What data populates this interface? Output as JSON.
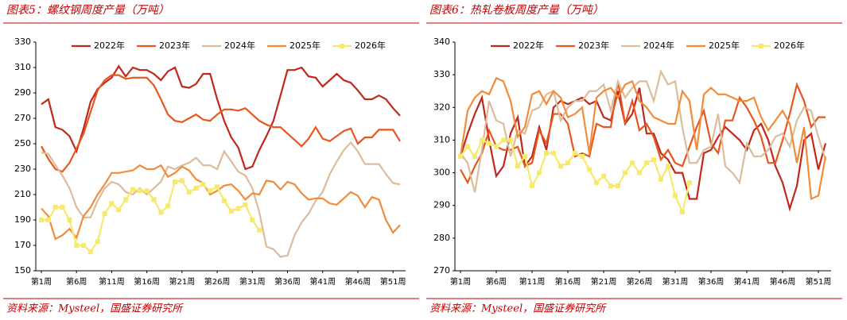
{
  "chart_data": [
    {
      "type": "line",
      "title": "图表5：螺纹钢周度产量（万吨）",
      "source": "资料来源：Mysteel，国盛证券研究所",
      "categories": [
        "第1周",
        null,
        null,
        null,
        null,
        "第6周",
        null,
        null,
        null,
        null,
        "第11周",
        null,
        null,
        null,
        null,
        "第16周",
        null,
        null,
        null,
        null,
        "第21周",
        null,
        null,
        null,
        null,
        "第26周",
        null,
        null,
        null,
        null,
        "第31周",
        null,
        null,
        null,
        null,
        "第36周",
        null,
        null,
        null,
        null,
        "第41周",
        null,
        null,
        null,
        null,
        "第46周",
        null,
        null,
        null,
        null,
        "第51周",
        null
      ],
      "ylim": [
        150,
        330
      ],
      "yticks": [
        150,
        170,
        190,
        210,
        230,
        250,
        270,
        290,
        310,
        330
      ],
      "grid": false,
      "legend": "top",
      "series": [
        {
          "name": "2022年",
          "color": "#c0281c",
          "values": [
            281,
            285,
            263,
            261,
            256,
            244,
            262,
            283,
            293,
            298,
            302,
            311,
            303,
            310,
            308,
            308,
            305,
            300,
            307,
            310,
            295,
            294,
            297,
            305,
            305,
            285,
            268,
            255,
            247,
            230,
            232,
            245,
            256,
            268,
            288,
            308,
            308,
            310,
            303,
            302,
            295,
            300,
            305,
            300,
            298,
            292,
            285,
            285,
            288,
            285,
            278,
            272
          ]
        },
        {
          "name": "2023年",
          "color": "#e8561e",
          "values": [
            248,
            238,
            230,
            228,
            235,
            246,
            258,
            275,
            292,
            300,
            304,
            304,
            301,
            302,
            302,
            302,
            296,
            285,
            273,
            268,
            267,
            270,
            273,
            269,
            268,
            273,
            277,
            277,
            276,
            278,
            273,
            268,
            265,
            263,
            263,
            258,
            253,
            248,
            254,
            263,
            254,
            252,
            256,
            260,
            262,
            250,
            255,
            255,
            261,
            261,
            261,
            252
          ]
        },
        {
          "name": "2024年",
          "color": "#dcbc9c",
          "values": [
            243,
            242,
            233,
            225,
            215,
            200,
            192,
            192,
            205,
            215,
            220,
            218,
            212,
            210,
            215,
            210,
            215,
            220,
            232,
            230,
            233,
            235,
            239,
            233,
            233,
            230,
            244,
            236,
            228,
            225,
            215,
            196,
            169,
            167,
            161,
            162,
            178,
            188,
            195,
            205,
            212,
            226,
            236,
            245,
            251,
            244,
            234,
            234,
            234,
            226,
            219,
            218
          ]
        },
        {
          "name": "2025年",
          "color": "#f28c3a",
          "values": [
            199,
            193,
            175,
            178,
            183,
            176,
            193,
            200,
            210,
            218,
            227,
            227,
            228,
            229,
            233,
            230,
            230,
            233,
            224,
            227,
            232,
            229,
            222,
            219,
            210,
            213,
            217,
            218,
            213,
            206,
            211,
            210,
            221,
            220,
            214,
            220,
            218,
            211,
            206,
            207,
            207,
            203,
            202,
            207,
            212,
            209,
            200,
            208,
            206,
            190,
            180,
            186
          ]
        },
        {
          "name": "2026年",
          "color": "#f7e96c",
          "marker": "square",
          "values": [
            190,
            190,
            200,
            200,
            190,
            170,
            170,
            165,
            173,
            195,
            203,
            198,
            206,
            214,
            213,
            213,
            206,
            196,
            201,
            220,
            221,
            212,
            215,
            218,
            213,
            216,
            205,
            197,
            199,
            202,
            190,
            182,
            null,
            null,
            null,
            null,
            null,
            null,
            null,
            null,
            null,
            null,
            null,
            null,
            null,
            null,
            null,
            null,
            null,
            null,
            null,
            null
          ]
        }
      ]
    },
    {
      "type": "line",
      "title": "图表6：热轧卷板周度产量（万吨）",
      "source": "资料来源：Mysteel，国盛证券研究所",
      "categories": [
        "第1周",
        null,
        null,
        null,
        null,
        "第6周",
        null,
        null,
        null,
        null,
        "第11周",
        null,
        null,
        null,
        null,
        "第16周",
        null,
        null,
        null,
        null,
        "第21周",
        null,
        null,
        null,
        null,
        "第26周",
        null,
        null,
        null,
        null,
        "第31周",
        null,
        null,
        null,
        null,
        "第36周",
        null,
        null,
        null,
        null,
        "第41周",
        null,
        null,
        null,
        null,
        "第46周",
        null,
        null,
        null,
        null,
        "第51周",
        null
      ],
      "ylim": [
        270,
        340
      ],
      "yticks": [
        270,
        280,
        290,
        300,
        310,
        320,
        330,
        340
      ],
      "grid": false,
      "legend": "top",
      "series": [
        {
          "name": "2022年",
          "color": "#c0281c",
          "values": [
            305,
            312,
            318,
            323,
            310,
            299,
            302,
            312,
            317,
            302,
            305,
            314,
            307,
            320,
            322,
            321,
            322,
            323,
            321,
            322,
            317,
            316,
            325,
            315,
            318,
            326,
            312,
            312,
            306,
            304,
            300,
            300,
            292,
            292,
            306,
            307,
            311,
            314,
            312,
            310,
            307,
            313,
            315,
            310,
            302,
            297,
            289,
            296,
            310,
            312,
            301,
            309
          ]
        },
        {
          "name": "2023年",
          "color": "#e8561e",
          "values": [
            301,
            297,
            302,
            306,
            313,
            308,
            307,
            307,
            308,
            302,
            303,
            313,
            309,
            318,
            318,
            315,
            305,
            306,
            305,
            315,
            314,
            314,
            328,
            315,
            322,
            313,
            315,
            311,
            304,
            307,
            303,
            302,
            308,
            314,
            319,
            309,
            306,
            316,
            316,
            323,
            320,
            316,
            311,
            303,
            303,
            310,
            318,
            327,
            322,
            314,
            317,
            317
          ]
        },
        {
          "name": "2024年",
          "color": "#dcbc9c",
          "values": [
            306,
            303,
            294,
            307,
            322,
            316,
            315,
            305,
            313,
            312,
            319,
            320,
            324,
            325,
            316,
            320,
            322,
            322,
            325,
            325,
            327,
            319,
            328,
            323,
            326,
            328,
            328,
            322,
            331,
            327,
            328,
            314,
            303,
            303,
            307,
            308,
            318,
            302,
            300,
            297,
            309,
            305,
            305,
            307,
            311,
            312,
            308,
            316,
            320,
            319,
            311,
            304
          ]
        },
        {
          "name": "2025年",
          "color": "#f28c3a",
          "values": [
            305,
            319,
            323,
            325,
            324,
            329,
            328,
            322,
            311,
            314,
            324,
            325,
            321,
            325,
            323,
            317,
            318,
            320,
            306,
            323,
            325,
            326,
            323,
            327,
            328,
            322,
            320,
            317,
            316,
            315,
            315,
            325,
            322,
            307,
            324,
            326,
            324,
            324,
            323,
            322,
            322,
            323,
            317,
            313,
            316,
            319,
            315,
            303,
            314,
            292,
            293,
            305
          ]
        },
        {
          "name": "2026年",
          "color": "#f7e96c",
          "marker": "square",
          "values": [
            305,
            308,
            305,
            310,
            309,
            308,
            310,
            310,
            302,
            305,
            296,
            300,
            306,
            306,
            302,
            303,
            306,
            305,
            301,
            297,
            299,
            296,
            296,
            300,
            303,
            300,
            303,
            304,
            298,
            302,
            293,
            288,
            297,
            null,
            null,
            null,
            null,
            null,
            null,
            null,
            null,
            null,
            null,
            null,
            null,
            null,
            null,
            null,
            null,
            null,
            null,
            null
          ]
        }
      ]
    }
  ]
}
